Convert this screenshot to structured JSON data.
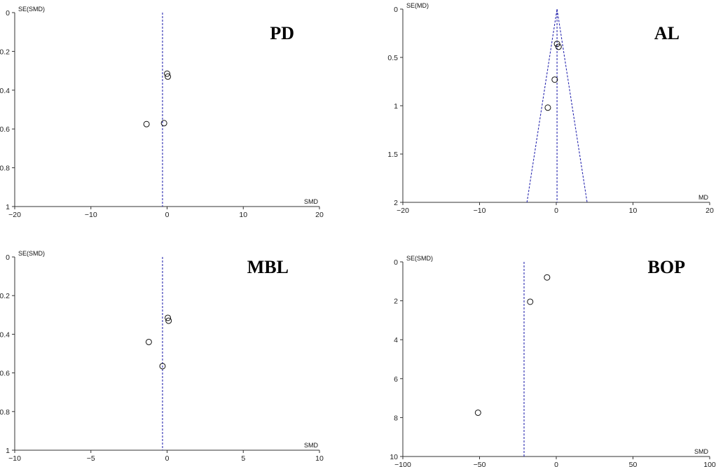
{
  "chart_data": [
    {
      "id": "pd",
      "type": "scatter",
      "title": "PD",
      "xlabel": "SMD",
      "ylabel": "SE(SMD)",
      "xlim": [
        -20,
        20
      ],
      "ylim": [
        0,
        1
      ],
      "y_inverted": true,
      "xticks": [
        "−20",
        "−10",
        "0",
        "10",
        "20"
      ],
      "yticks": [
        "0",
        "0.2",
        "0.4",
        "0.6",
        "0.8",
        "1"
      ],
      "reference_line_x": -0.6,
      "funnel": false,
      "points": [
        {
          "x": 0.0,
          "y": 0.315
        },
        {
          "x": 0.1,
          "y": 0.33
        },
        {
          "x": -0.4,
          "y": 0.57
        },
        {
          "x": -2.7,
          "y": 0.575
        }
      ]
    },
    {
      "id": "al",
      "type": "scatter",
      "title": "AL",
      "xlabel": "MD",
      "ylabel": "SE(MD)",
      "xlim": [
        -20,
        20
      ],
      "ylim": [
        0,
        2
      ],
      "y_inverted": true,
      "xticks": [
        "−20",
        "−10",
        "0",
        "10",
        "20"
      ],
      "yticks": [
        "0",
        "0.5",
        "1",
        "1.5",
        "2"
      ],
      "reference_line_x": 0.1,
      "funnel": true,
      "points": [
        {
          "x": 0.1,
          "y": 0.36
        },
        {
          "x": 0.3,
          "y": 0.39
        },
        {
          "x": -0.2,
          "y": 0.73
        },
        {
          "x": -1.1,
          "y": 1.02
        }
      ]
    },
    {
      "id": "mbl",
      "type": "scatter",
      "title": "MBL",
      "xlabel": "SMD",
      "ylabel": "SE(SMD)",
      "xlim": [
        -10,
        10
      ],
      "ylim": [
        0,
        1
      ],
      "y_inverted": true,
      "xticks": [
        "−10",
        "−5",
        "0",
        "5",
        "10"
      ],
      "yticks": [
        "0",
        "0.2",
        "0.4",
        "0.6",
        "0.8",
        "1"
      ],
      "reference_line_x": -0.3,
      "funnel": false,
      "points": [
        {
          "x": 0.05,
          "y": 0.315
        },
        {
          "x": 0.1,
          "y": 0.33
        },
        {
          "x": -1.2,
          "y": 0.44
        },
        {
          "x": -0.3,
          "y": 0.565
        }
      ]
    },
    {
      "id": "bop",
      "type": "scatter",
      "title": "BOP",
      "xlabel": "SMD",
      "ylabel": "SE(SMD)",
      "xlim": [
        -100,
        100
      ],
      "ylim": [
        0,
        10
      ],
      "y_inverted": true,
      "xticks": [
        "−100",
        "−50",
        "0",
        "50",
        "100"
      ],
      "yticks": [
        "0",
        "2",
        "4",
        "6",
        "8",
        "10"
      ],
      "reference_line_x": -21,
      "funnel": false,
      "points": [
        {
          "x": -6,
          "y": 0.8
        },
        {
          "x": -17,
          "y": 2.05
        },
        {
          "x": -51,
          "y": 7.75
        }
      ]
    }
  ]
}
